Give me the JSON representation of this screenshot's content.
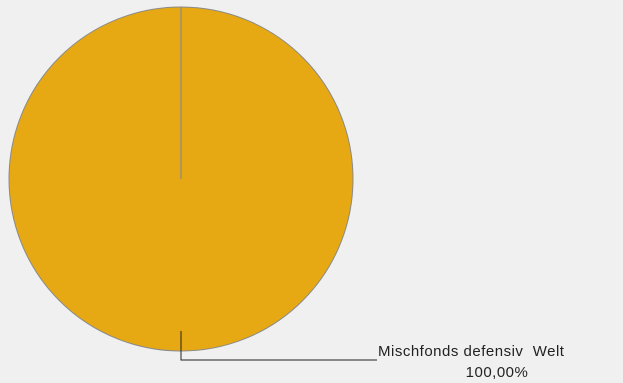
{
  "chart_data": {
    "type": "pie",
    "title": "",
    "slices": [
      {
        "label": "Mischfonds defensiv  Welt",
        "value": 100.0,
        "value_label": "100,00%",
        "color": "#e6a913"
      }
    ],
    "legend": "none",
    "label_placement": "leader-line-bottom-right"
  }
}
